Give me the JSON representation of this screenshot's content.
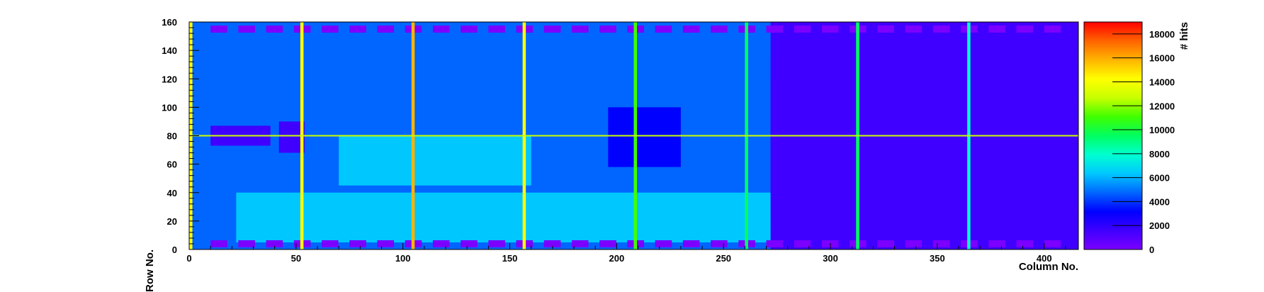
{
  "chart_data": {
    "type": "heatmap",
    "title": "",
    "xlabel": "Column No.",
    "ylabel": "Row No.",
    "zlabel": "# hits",
    "xlim": [
      0,
      416
    ],
    "ylim": [
      0,
      160
    ],
    "zlim": [
      0,
      19000
    ],
    "x_ticks": [
      0,
      50,
      100,
      150,
      200,
      250,
      300,
      350,
      400
    ],
    "y_ticks": [
      0,
      20,
      40,
      60,
      80,
      100,
      120,
      140,
      160
    ],
    "z_ticks": [
      0,
      2000,
      4000,
      6000,
      8000,
      10000,
      12000,
      14000,
      16000,
      18000
    ],
    "colormap": [
      "#7b00ff",
      "#3f00ff",
      "#0000ff",
      "#0066ff",
      "#00c8ff",
      "#00ffd0",
      "#00ff60",
      "#40ff00",
      "#c8ff00",
      "#ffff00",
      "#ffb400",
      "#ff6400",
      "#ff0000"
    ],
    "background_level": 5500,
    "regions": [
      {
        "name": "right matrix block",
        "x": [
          272,
          416
        ],
        "y": [
          0,
          160
        ],
        "value": 2200
      },
      {
        "name": "dense block",
        "x": [
          272,
          297
        ],
        "y": [
          22,
          137
        ],
        "value": 1000
      },
      {
        "name": "central square",
        "x": [
          196,
          230
        ],
        "y": [
          58,
          100
        ],
        "value": 2500
      },
      {
        "name": "left center block",
        "x": [
          10,
          38
        ],
        "y": [
          73,
          87
        ],
        "value": 2200
      },
      {
        "name": "left inner block",
        "x": [
          42,
          54
        ],
        "y": [
          68,
          90
        ],
        "value": 2200
      },
      {
        "name": "lower left band",
        "x": [
          22,
          272
        ],
        "y": [
          5,
          40
        ],
        "value": 6500
      },
      {
        "name": "upper left band",
        "x": [
          2,
          272
        ],
        "y": [
          118,
          152
        ],
        "value": 4500
      },
      {
        "name": "mid left area",
        "x": [
          70,
          160
        ],
        "y": [
          45,
          80
        ],
        "value": 7000
      }
    ],
    "hot_columns": [
      {
        "x": 0,
        "value": 15000
      },
      {
        "x": 52,
        "value": 14500
      },
      {
        "x": 104,
        "value": 15500
      },
      {
        "x": 156,
        "value": 14500
      },
      {
        "x": 208,
        "value": 11000
      },
      {
        "x": 260,
        "value": 10000
      },
      {
        "x": 312,
        "value": 9000
      },
      {
        "x": 364,
        "value": 8500
      }
    ],
    "hot_rows": [
      {
        "y": 80,
        "value": 12000
      }
    ],
    "pad_rows": [
      {
        "y": 155,
        "x_start": 10,
        "x_end": 410,
        "spacing": 13,
        "value": 500
      },
      {
        "y": 4,
        "x_start": 10,
        "x_end": 410,
        "spacing": 13,
        "value": 500
      }
    ]
  }
}
